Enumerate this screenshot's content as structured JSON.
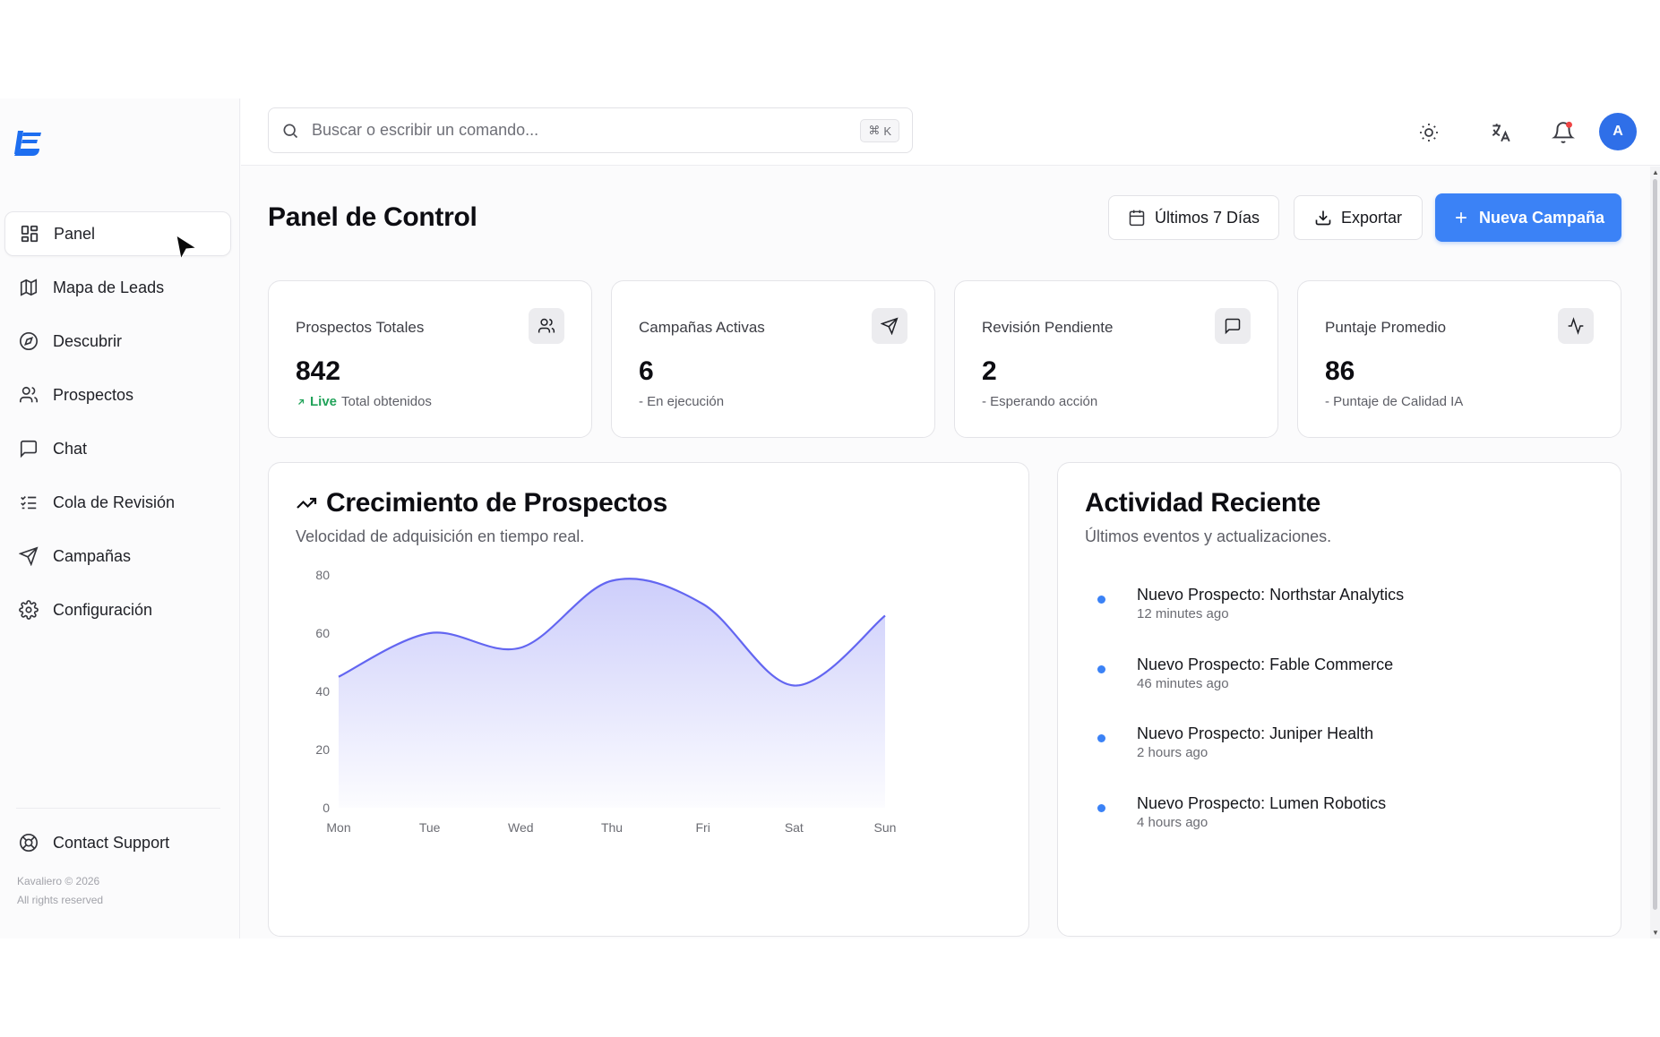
{
  "sidebar": {
    "logo": "kavaliero-logo",
    "items": [
      {
        "label": "Panel",
        "icon": "dashboard-grid-icon",
        "active": true
      },
      {
        "label": "Mapa de Leads",
        "icon": "map-icon"
      },
      {
        "label": "Descubrir",
        "icon": "compass-icon"
      },
      {
        "label": "Prospectos",
        "icon": "users-icon"
      },
      {
        "label": "Chat",
        "icon": "chat-icon"
      },
      {
        "label": "Cola de Revisión",
        "icon": "list-checks-icon"
      },
      {
        "label": "Campañas",
        "icon": "send-icon"
      },
      {
        "label": "Configuración",
        "icon": "gear-icon"
      }
    ],
    "support_label": "Contact Support",
    "copyright": "Kavaliero © 2026",
    "rights": "All rights reserved"
  },
  "topbar": {
    "search_placeholder": "Buscar o escribir un comando...",
    "shortcut_symbol": "⌘",
    "shortcut_key": "K",
    "avatar_initial": "A"
  },
  "header": {
    "title": "Panel de Control",
    "date_range_label": "Últimos 7 Días",
    "export_label": "Exportar",
    "new_campaign_label": "Nueva Campaña"
  },
  "stats": [
    {
      "label": "Prospectos Totales",
      "value": "842",
      "live": "Live",
      "sub": "Total obtenidos",
      "icon": "users-icon"
    },
    {
      "label": "Campañas Activas",
      "value": "6",
      "sub": "- En ejecución",
      "icon": "send-icon"
    },
    {
      "label": "Revisión Pendiente",
      "value": "2",
      "sub": "- Esperando acción",
      "icon": "message-square-icon"
    },
    {
      "label": "Puntaje Promedio",
      "value": "86",
      "sub": "- Puntaje de Calidad IA",
      "icon": "activity-icon"
    }
  ],
  "growth": {
    "title": "Crecimiento de Prospectos",
    "subtitle": "Velocidad de adquisición en tiempo real."
  },
  "chart_data": {
    "type": "area",
    "categories": [
      "Mon",
      "Tue",
      "Wed",
      "Thu",
      "Fri",
      "Sat",
      "Sun"
    ],
    "values": [
      45,
      60,
      55,
      78,
      70,
      42,
      66
    ],
    "ylim": [
      0,
      80
    ],
    "yticks": [
      0,
      20,
      40,
      60,
      80
    ],
    "color": "#6366f1",
    "grid": false
  },
  "activity": {
    "title": "Actividad Reciente",
    "subtitle": "Últimos eventos y actualizaciones.",
    "items": [
      {
        "title": "Nuevo Prospecto: Northstar Analytics",
        "time": "12 minutes ago"
      },
      {
        "title": "Nuevo Prospecto: Fable Commerce",
        "time": "46 minutes ago"
      },
      {
        "title": "Nuevo Prospecto: Juniper Health",
        "time": "2 hours ago"
      },
      {
        "title": "Nuevo Prospecto: Lumen Robotics",
        "time": "4 hours ago"
      }
    ]
  },
  "colors": {
    "accent": "#3b82f6",
    "live": "#22a35a",
    "notification_dot": "#ef4444",
    "chart_line": "#6366f1"
  }
}
